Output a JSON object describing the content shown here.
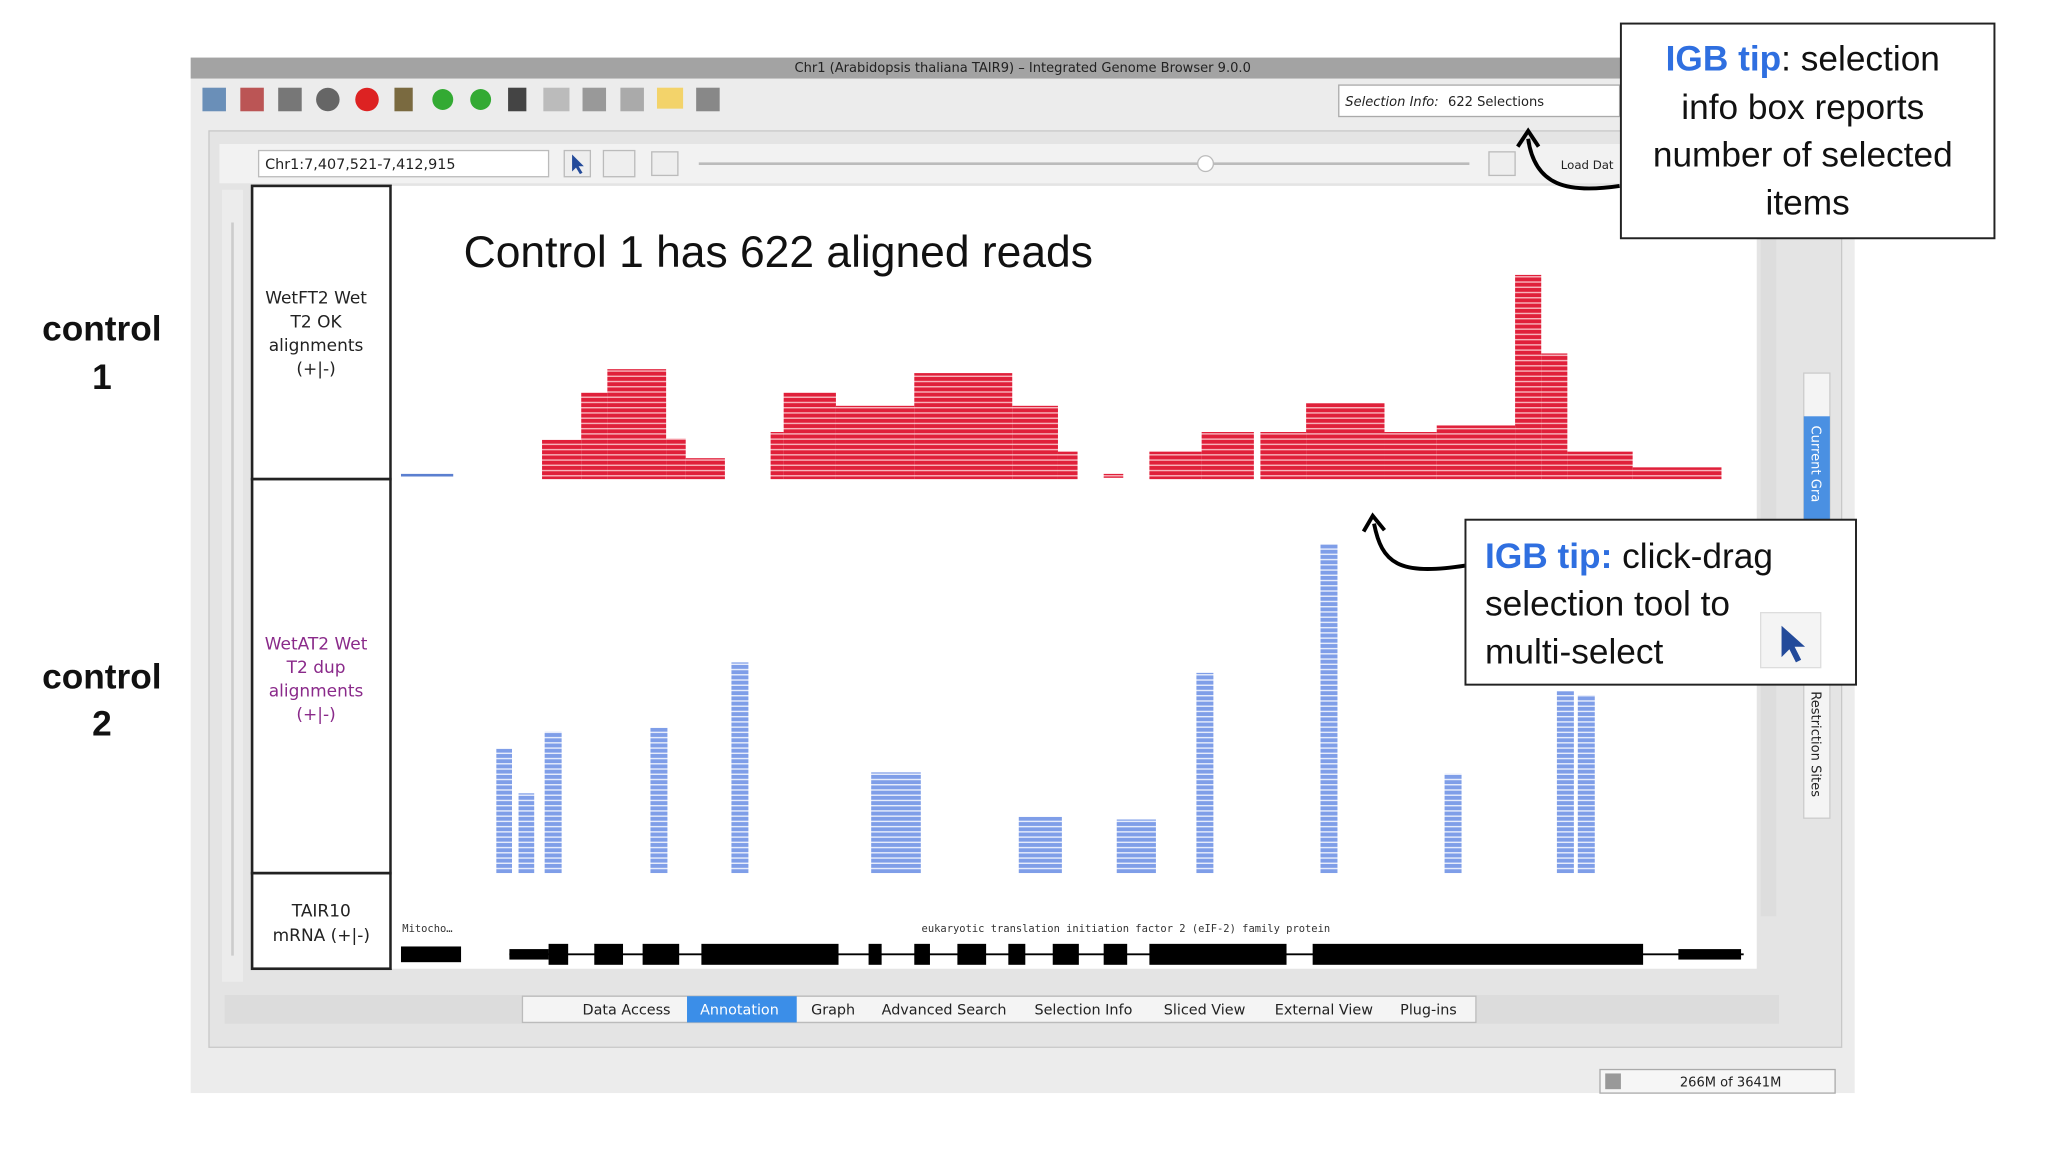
{
  "window": {
    "title": "Chr1 (Arabidopsis thaliana TAIR9) – Integrated Genome Browser 9.0.0",
    "selection_label": "Selection Info:",
    "selection_value": "622 Selections",
    "location": "Chr1:7,407,521-7,412,915",
    "load_data": "Load Dat",
    "tracks": [
      {
        "lines": [
          "WetFT2 Wet",
          "T2 OK",
          "alignments",
          "(+|-)"
        ]
      },
      {
        "lines": [
          "WetAT2 Wet",
          "T2 dup",
          "alignments",
          "(+|-)"
        ]
      },
      {
        "lines": [
          "TAIR10",
          "mRNA (+|-)"
        ]
      }
    ],
    "gene_labels": [
      "Mitocho…",
      "eukaryotic translation initiation factor 2 (eIF-2) family protein"
    ],
    "tabs": [
      "Data Access",
      "Annotation",
      "Graph",
      "Advanced Search",
      "Selection Info",
      "Sliced View",
      "External View",
      "Plug-ins"
    ],
    "side_tabs": [
      "Current Gra",
      "Restriction Sites"
    ],
    "memory": "266M of 3641M"
  },
  "headline": "Control 1 has 622 aligned reads",
  "row_labels": [
    {
      "lines": [
        "control",
        "1"
      ]
    },
    {
      "lines": [
        "control",
        "2"
      ]
    }
  ],
  "callouts": [
    {
      "tip": "IGB tip",
      "lines": [
        ": selection",
        "info box reports",
        "number of selected",
        "items"
      ]
    },
    {
      "tip": "IGB tip:",
      "lines": [
        " click-drag",
        "selection tool to",
        "multi-select"
      ]
    }
  ]
}
